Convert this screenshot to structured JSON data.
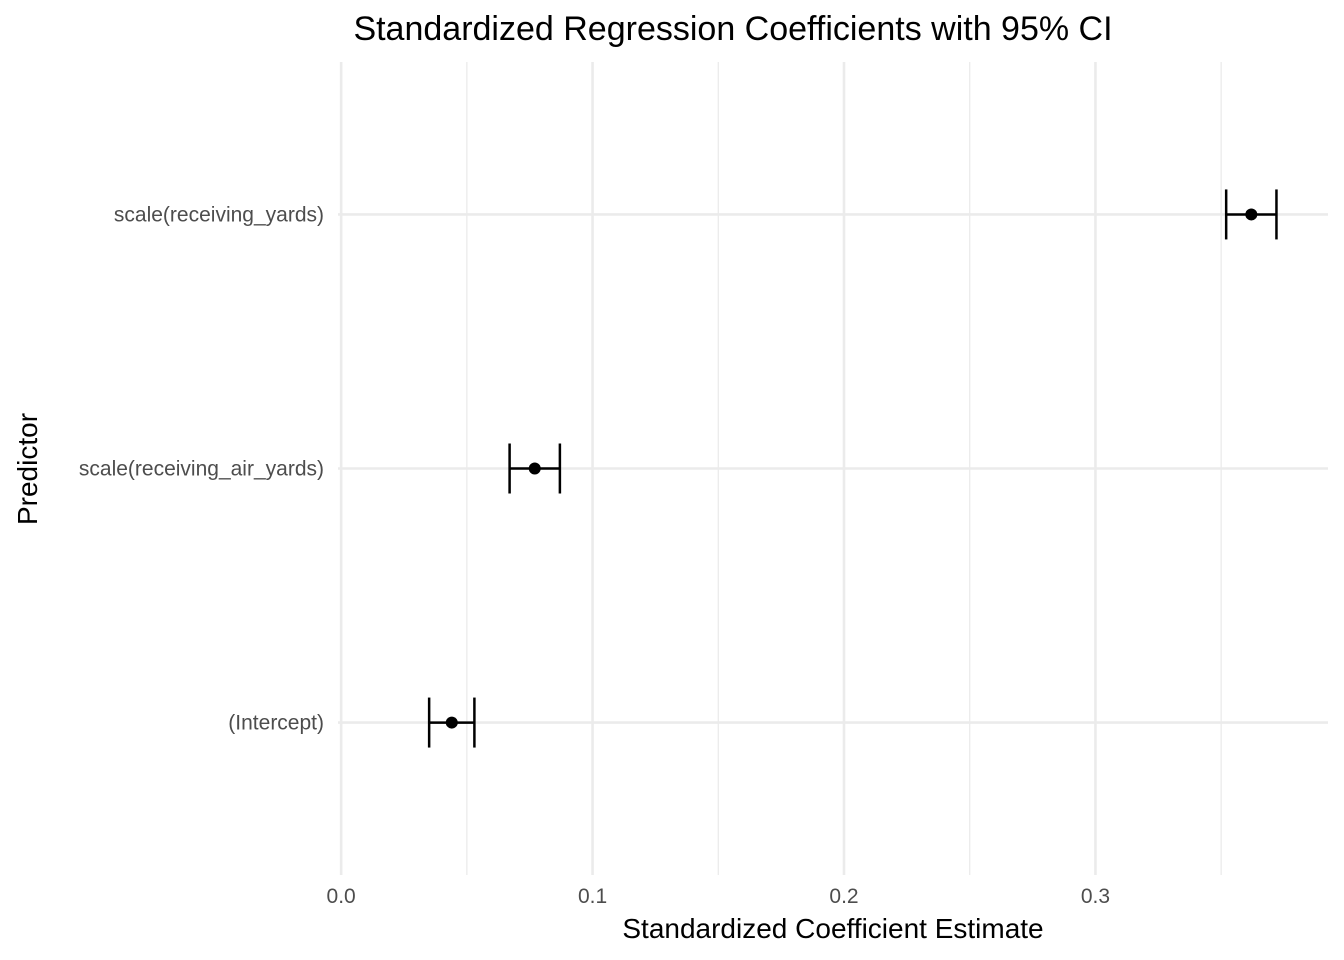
{
  "chart_data": {
    "type": "scatter",
    "title": "Standardized Regression Coefficients with 95% CI",
    "xlabel": "Standardized Coefficient Estimate",
    "ylabel": "Predictor",
    "xlim": [
      -0.00125,
      0.3925
    ],
    "x_ticks": [
      "0.0",
      "0.1",
      "0.2",
      "0.3"
    ],
    "x_tick_values": [
      0.0,
      0.1,
      0.2,
      0.3
    ],
    "x_minor_values": [
      0.05,
      0.15,
      0.25,
      0.35
    ],
    "grid": true,
    "legend": "none",
    "categories": [
      "scale(receiving_yards)",
      "scale(receiving_air_yards)",
      "(Intercept)"
    ],
    "estimates": [
      0.362,
      0.077,
      0.044
    ],
    "ci_low": [
      0.352,
      0.067,
      0.035
    ],
    "ci_high": [
      0.372,
      0.087,
      0.053
    ],
    "point_color": "#000000"
  }
}
